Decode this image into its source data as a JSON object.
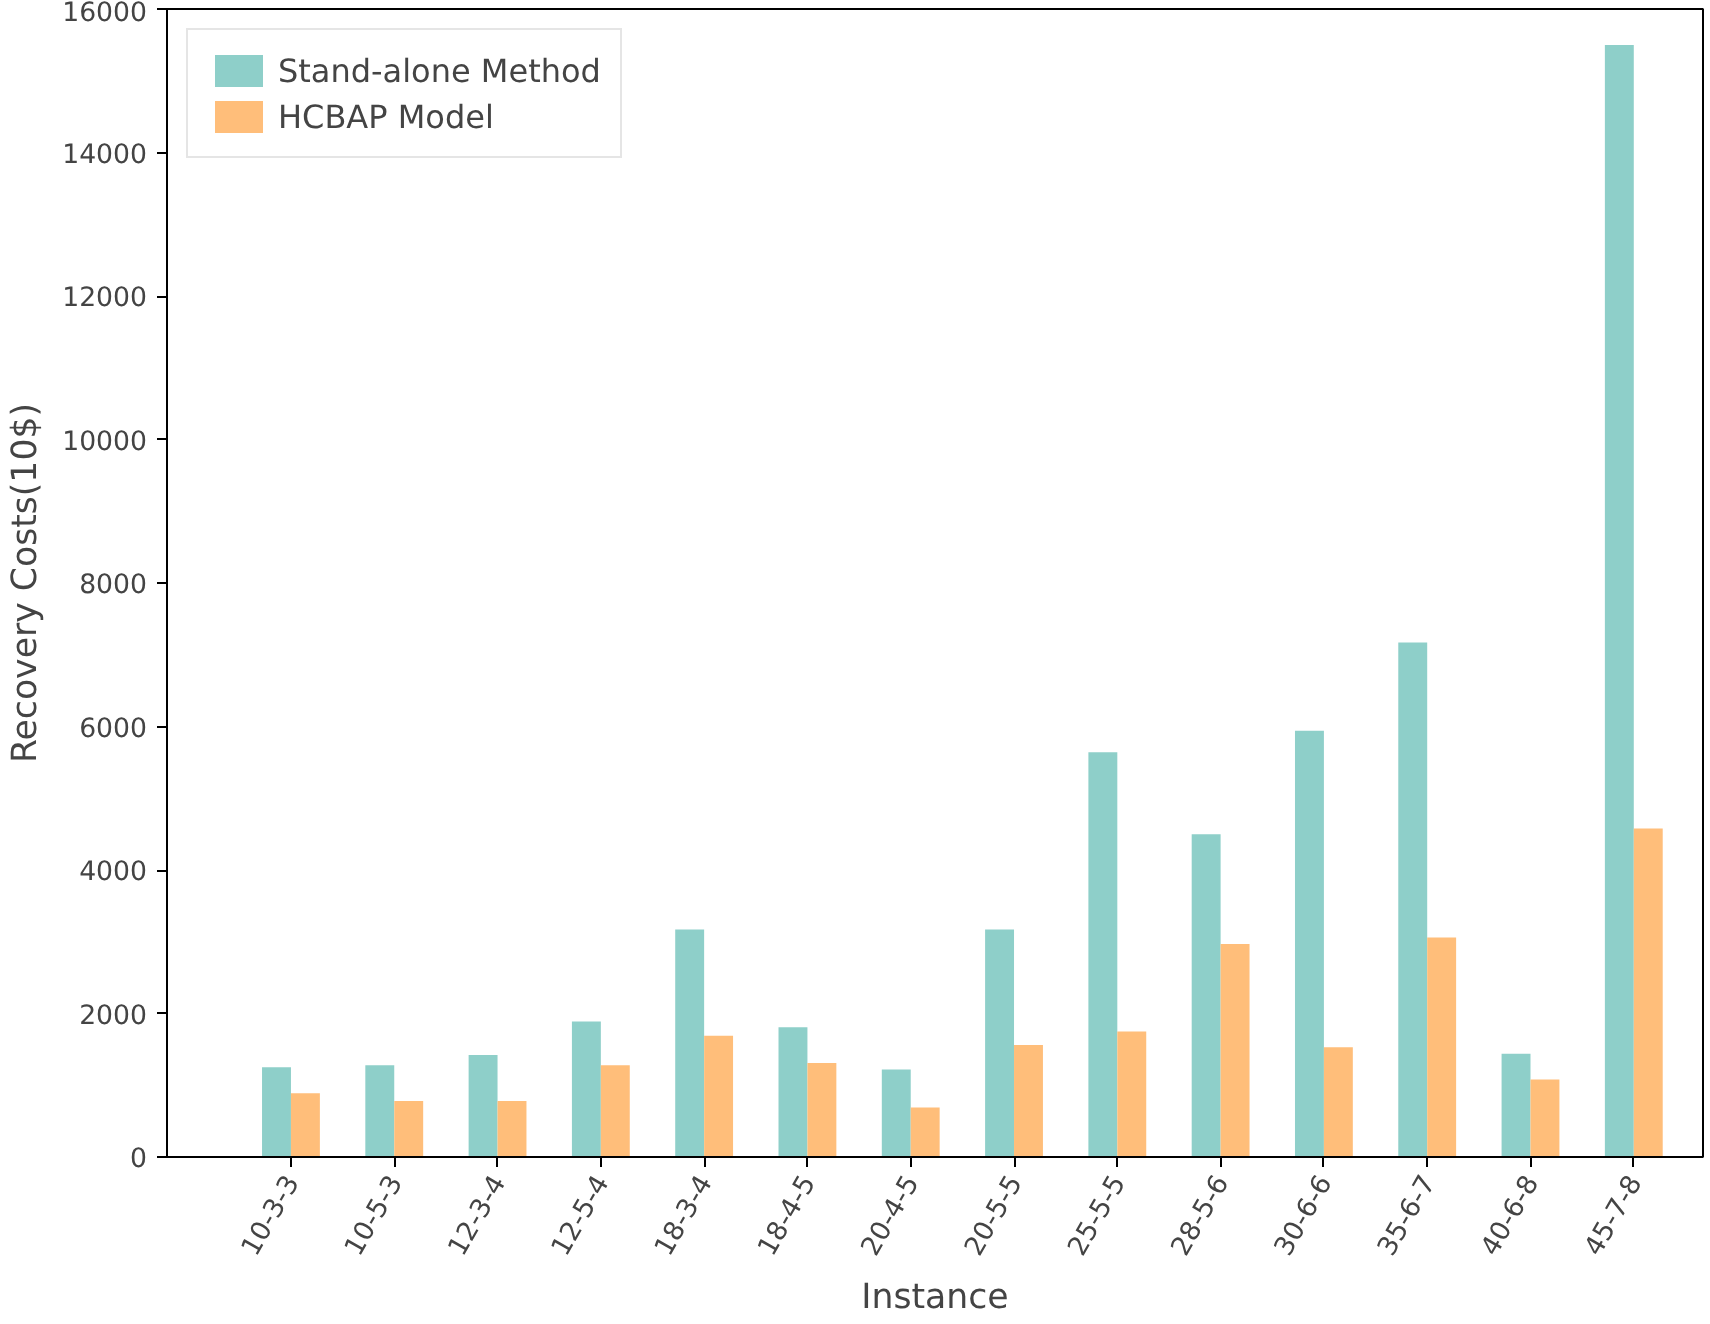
{
  "chart_data": {
    "type": "bar",
    "xlabel": "Instance",
    "ylabel": "Recovery Costs(10$)",
    "categories": [
      "10-3-3",
      "10-5-3",
      "12-3-4",
      "12-5-4",
      "18-3-4",
      "18-4-5",
      "20-4-5",
      "20-5-5",
      "25-5-5",
      "28-5-6",
      "30-6-6",
      "35-6-7",
      "40-6-8",
      "45-7-8"
    ],
    "series": [
      {
        "name": "Stand-alone Method",
        "color": "#8ecfc9",
        "values": [
          1250,
          1280,
          1420,
          1890,
          3170,
          1810,
          1220,
          3170,
          5640,
          4500,
          5940,
          7170,
          1440,
          15500
        ]
      },
      {
        "name": "HCBAP Model",
        "color": "#ffbe7a",
        "values": [
          890,
          780,
          780,
          1280,
          1690,
          1310,
          690,
          1560,
          1750,
          2970,
          1530,
          3060,
          1080,
          4580
        ]
      }
    ],
    "ylim": [
      0,
      16000
    ],
    "yticks": [
      0,
      2000,
      4000,
      6000,
      8000,
      10000,
      12000,
      14000,
      16000
    ],
    "grid": false,
    "legend": "top left"
  }
}
